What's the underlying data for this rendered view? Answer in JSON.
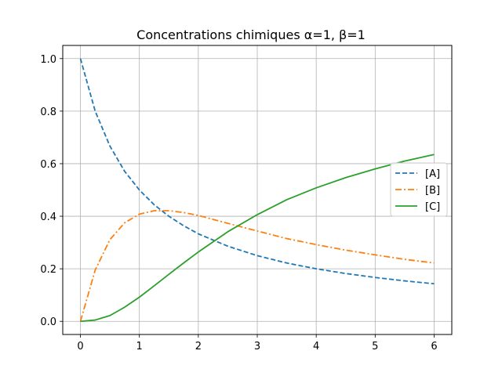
{
  "chart_data": {
    "type": "line",
    "title": "Concentrations chimiques α=1, β=1",
    "xlabel": "",
    "ylabel": "",
    "xlim": [
      -0.3,
      6.3
    ],
    "ylim": [
      -0.05,
      1.05
    ],
    "xticks": [
      0,
      1,
      2,
      3,
      4,
      5,
      6
    ],
    "yticks": [
      0.0,
      0.2,
      0.4,
      0.6,
      0.8,
      1.0
    ],
    "xtick_labels": [
      "0",
      "1",
      "2",
      "3",
      "4",
      "5",
      "6"
    ],
    "ytick_labels": [
      "0.0",
      "0.2",
      "0.4",
      "0.6",
      "0.8",
      "1.0"
    ],
    "grid": true,
    "legend_position": "center-right",
    "series": [
      {
        "name": "[A]",
        "color": "#1f77b4",
        "dash": "dashed",
        "x": [
          0,
          0.25,
          0.5,
          0.75,
          1,
          1.25,
          1.5,
          1.75,
          2,
          2.5,
          3,
          3.5,
          4,
          4.5,
          5,
          5.5,
          6
        ],
        "y": [
          1.0,
          0.8,
          0.667,
          0.571,
          0.5,
          0.444,
          0.4,
          0.364,
          0.333,
          0.286,
          0.25,
          0.222,
          0.2,
          0.182,
          0.167,
          0.154,
          0.143
        ]
      },
      {
        "name": "[B]",
        "color": "#ff7f0e",
        "dash": "dashdot",
        "x": [
          0,
          0.25,
          0.5,
          0.75,
          1,
          1.25,
          1.5,
          1.75,
          2,
          2.5,
          3,
          3.5,
          4,
          4.5,
          5,
          5.5,
          6
        ],
        "y": [
          0.0,
          0.195,
          0.311,
          0.375,
          0.408,
          0.421,
          0.421,
          0.414,
          0.403,
          0.373,
          0.344,
          0.315,
          0.292,
          0.271,
          0.253,
          0.236,
          0.222
        ]
      },
      {
        "name": "[C]",
        "color": "#2ca02c",
        "dash": "solid",
        "x": [
          0,
          0.25,
          0.5,
          0.75,
          1,
          1.25,
          1.5,
          1.75,
          2,
          2.5,
          3,
          3.5,
          4,
          4.5,
          5,
          5.5,
          6
        ],
        "y": [
          0.0,
          0.005,
          0.022,
          0.054,
          0.092,
          0.135,
          0.179,
          0.222,
          0.264,
          0.341,
          0.406,
          0.463,
          0.508,
          0.547,
          0.58,
          0.61,
          0.635
        ]
      }
    ]
  }
}
